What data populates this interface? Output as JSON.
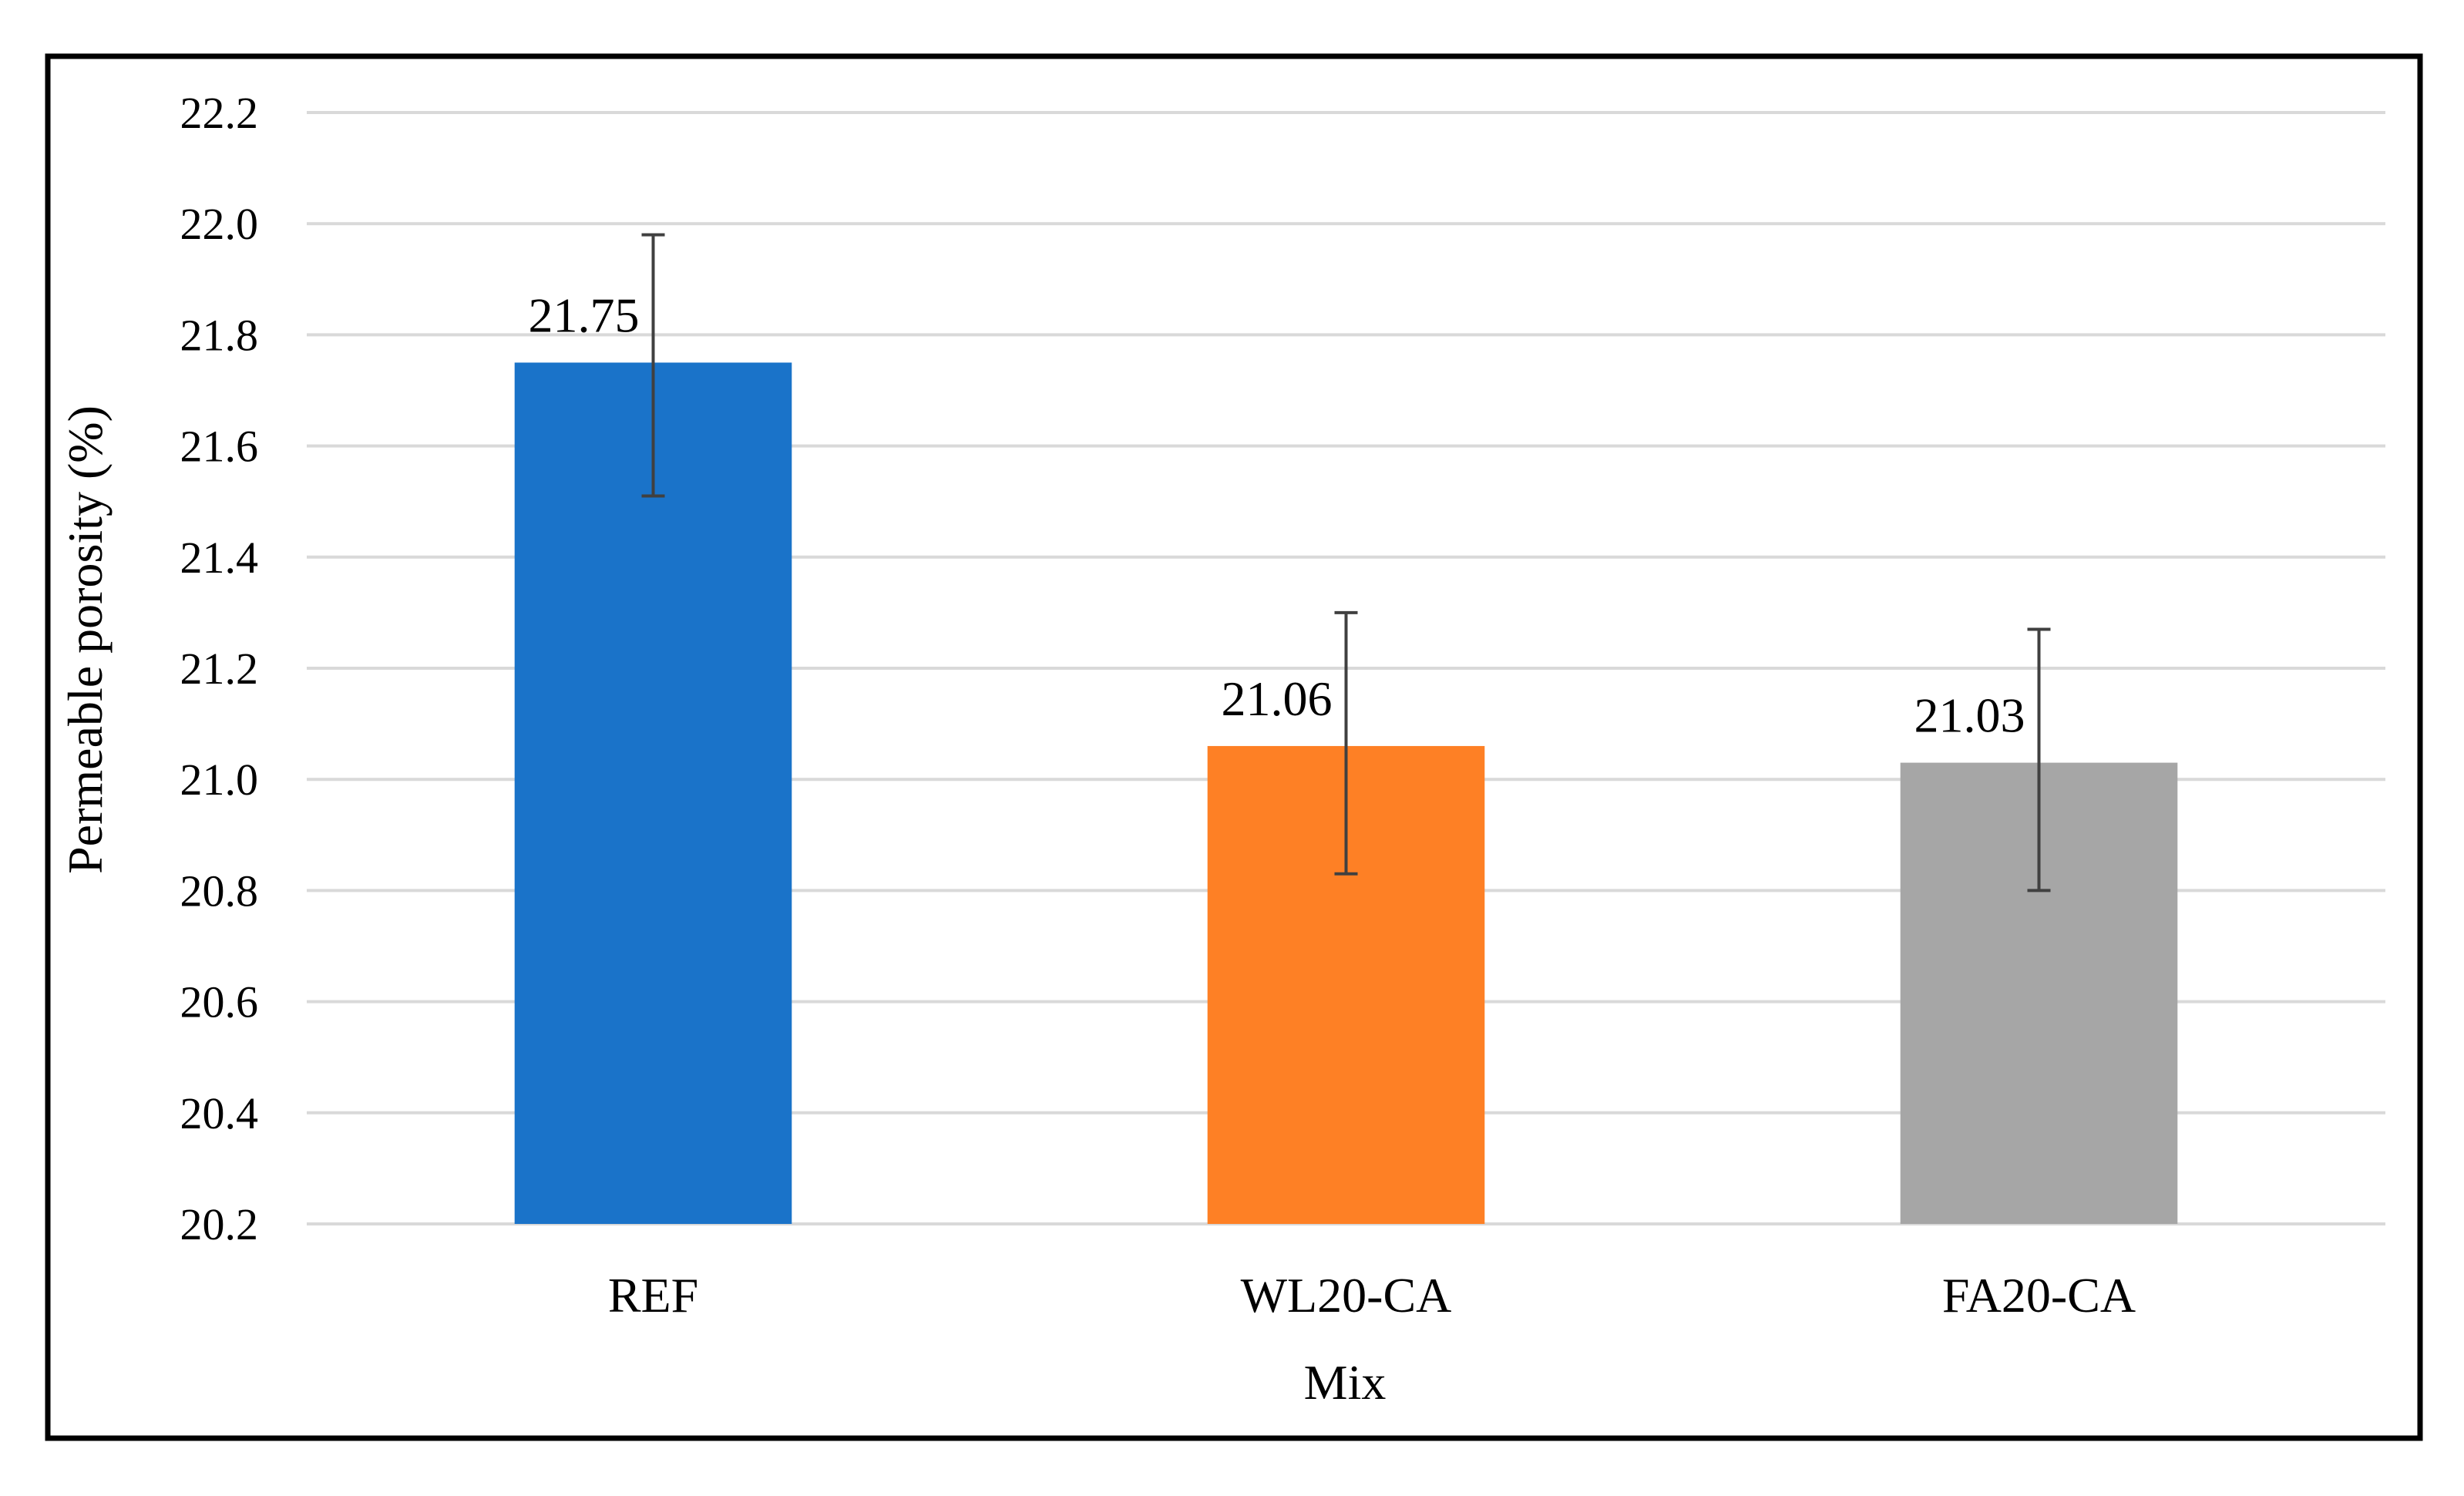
{
  "chart_data": {
    "type": "bar",
    "categories": [
      "REF",
      "WL20-CA",
      "FA20-CA"
    ],
    "values": [
      21.75,
      21.06,
      21.03
    ],
    "data_labels": [
      "21.75",
      "21.06",
      "21.03"
    ],
    "error_bars": [
      {
        "low": 21.51,
        "high": 21.98
      },
      {
        "low": 20.83,
        "high": 21.3
      },
      {
        "low": 20.8,
        "high": 21.27
      }
    ],
    "colors": [
      "#1a73c9",
      "#fe8025",
      "#a6a6a6"
    ],
    "title": "",
    "xlabel": "Mix",
    "ylabel": "Permeable porosity (%)",
    "ylim": [
      20.2,
      22.2
    ],
    "yticks": [
      "20.2",
      "20.4",
      "20.6",
      "20.8",
      "21.0",
      "21.2",
      "21.4",
      "21.6",
      "21.8",
      "22.0",
      "22.2"
    ],
    "grid": true,
    "legend": "none"
  }
}
